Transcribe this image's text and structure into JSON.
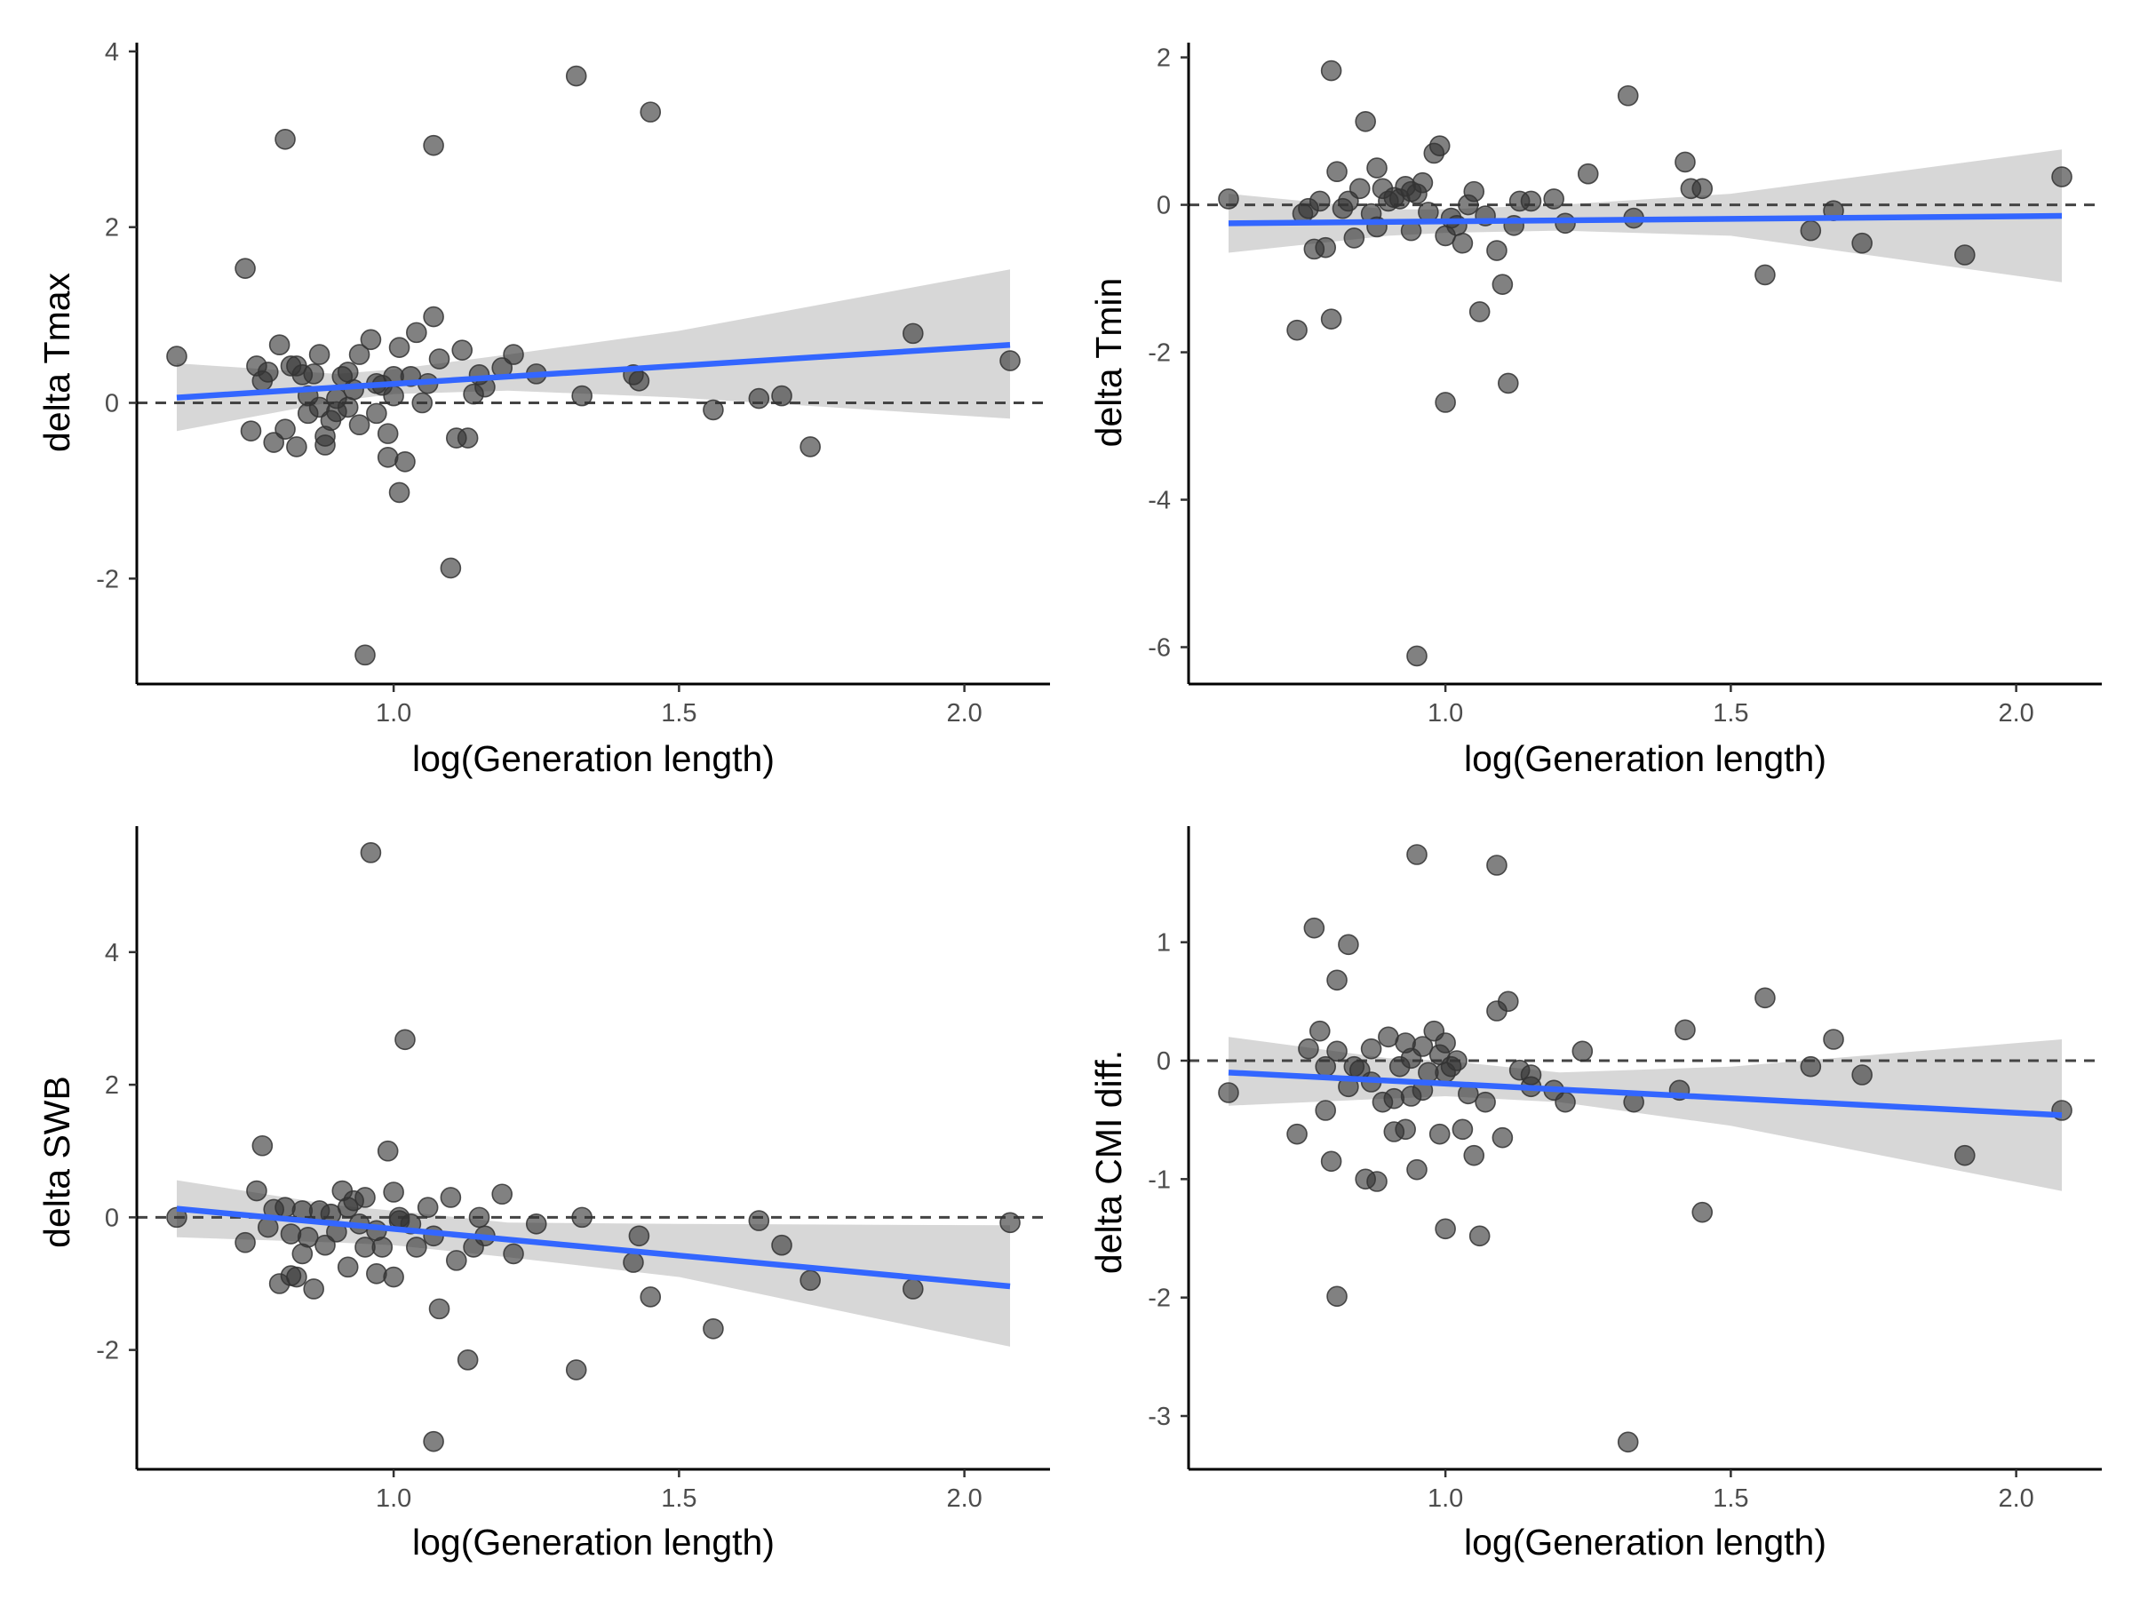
{
  "style": {
    "point_color": "#333333",
    "fit_color": "#3366FF",
    "ribbon_color": "#D3D3D3",
    "zero_line_color": "#444444",
    "axis_color": "#000000"
  },
  "chart_data": [
    {
      "type": "scatter",
      "title": "",
      "xlabel": "log(Generation length)",
      "ylabel": "delta Tmax",
      "xlim": [
        0.55,
        2.15
      ],
      "ylim": [
        -3.2,
        4.1
      ],
      "xticks": [
        1.0,
        1.5,
        2.0
      ],
      "xtick_labels": [
        "1.0",
        "1.5",
        "2.0"
      ],
      "yticks": [
        -2,
        0,
        2,
        4
      ],
      "ytick_labels": [
        "-2",
        "0",
        "2",
        "4"
      ],
      "reference_line": 0,
      "fit": {
        "x": [
          0.62,
          2.08
        ],
        "y": [
          0.06,
          0.66
        ]
      },
      "ribbon": {
        "x": [
          0.62,
          0.9,
          1.0,
          1.2,
          1.5,
          2.08
        ],
        "lower": [
          -0.32,
          0.02,
          0.1,
          0.14,
          0.06,
          -0.18
        ],
        "upper": [
          0.45,
          0.33,
          0.38,
          0.55,
          0.82,
          1.52
        ]
      },
      "points": [
        [
          0.62,
          0.53
        ],
        [
          0.74,
          1.53
        ],
        [
          0.75,
          -0.32
        ],
        [
          0.76,
          0.42
        ],
        [
          0.77,
          0.25
        ],
        [
          0.78,
          0.35
        ],
        [
          0.79,
          -0.45
        ],
        [
          0.8,
          0.66
        ],
        [
          0.81,
          3.0
        ],
        [
          0.81,
          -0.3
        ],
        [
          0.82,
          0.42
        ],
        [
          0.83,
          0.42
        ],
        [
          0.83,
          -0.5
        ],
        [
          0.84,
          0.32
        ],
        [
          0.85,
          0.08
        ],
        [
          0.85,
          -0.12
        ],
        [
          0.86,
          0.33
        ],
        [
          0.87,
          0.55
        ],
        [
          0.87,
          -0.05
        ],
        [
          0.88,
          -0.38
        ],
        [
          0.88,
          -0.48
        ],
        [
          0.89,
          -0.2
        ],
        [
          0.9,
          0.05
        ],
        [
          0.9,
          -0.1
        ],
        [
          0.91,
          0.3
        ],
        [
          0.92,
          0.35
        ],
        [
          0.92,
          -0.05
        ],
        [
          0.93,
          0.15
        ],
        [
          0.94,
          -0.25
        ],
        [
          0.94,
          0.55
        ],
        [
          0.95,
          -2.87
        ],
        [
          0.96,
          0.72
        ],
        [
          0.97,
          0.22
        ],
        [
          0.97,
          -0.12
        ],
        [
          0.98,
          0.2
        ],
        [
          0.99,
          -0.35
        ],
        [
          0.99,
          -0.62
        ],
        [
          1.0,
          0.08
        ],
        [
          1.0,
          0.3
        ],
        [
          1.01,
          0.63
        ],
        [
          1.01,
          -1.02
        ],
        [
          1.02,
          -0.67
        ],
        [
          1.03,
          0.3
        ],
        [
          1.04,
          0.8
        ],
        [
          1.05,
          0.0
        ],
        [
          1.06,
          0.22
        ],
        [
          1.07,
          2.93
        ],
        [
          1.07,
          0.98
        ],
        [
          1.08,
          0.5
        ],
        [
          1.1,
          -1.88
        ],
        [
          1.11,
          -0.4
        ],
        [
          1.12,
          0.6
        ],
        [
          1.13,
          -0.4
        ],
        [
          1.14,
          0.1
        ],
        [
          1.15,
          0.32
        ],
        [
          1.16,
          0.18
        ],
        [
          1.19,
          0.4
        ],
        [
          1.21,
          0.55
        ],
        [
          1.25,
          0.33
        ],
        [
          1.32,
          3.72
        ],
        [
          1.33,
          0.08
        ],
        [
          1.42,
          0.32
        ],
        [
          1.43,
          0.25
        ],
        [
          1.45,
          3.31
        ],
        [
          1.56,
          -0.08
        ],
        [
          1.64,
          0.05
        ],
        [
          1.68,
          0.08
        ],
        [
          1.73,
          -0.5
        ],
        [
          1.91,
          0.79
        ],
        [
          2.08,
          0.48
        ]
      ]
    },
    {
      "type": "scatter",
      "title": "",
      "xlabel": "log(Generation length)",
      "ylabel": "delta Tmin",
      "xlim": [
        0.55,
        2.15
      ],
      "ylim": [
        -6.5,
        2.2
      ],
      "xticks": [
        1.0,
        1.5,
        2.0
      ],
      "xtick_labels": [
        "1.0",
        "1.5",
        "2.0"
      ],
      "yticks": [
        -6,
        -4,
        -2,
        0,
        2
      ],
      "ytick_labels": [
        "-6",
        "-4",
        "-2",
        "0",
        "2"
      ],
      "reference_line": 0,
      "fit": {
        "x": [
          0.62,
          2.08
        ],
        "y": [
          -0.25,
          -0.15
        ]
      },
      "ribbon": {
        "x": [
          0.62,
          0.9,
          1.0,
          1.2,
          1.5,
          2.08
        ],
        "lower": [
          -0.65,
          -0.42,
          -0.38,
          -0.35,
          -0.42,
          -1.05
        ],
        "upper": [
          0.15,
          -0.06,
          -0.06,
          0.0,
          0.15,
          0.75
        ]
      },
      "points": [
        [
          0.62,
          0.08
        ],
        [
          0.74,
          -1.7
        ],
        [
          0.75,
          -0.12
        ],
        [
          0.76,
          -0.05
        ],
        [
          0.77,
          -0.6
        ],
        [
          0.78,
          0.05
        ],
        [
          0.79,
          -0.58
        ],
        [
          0.8,
          -1.55
        ],
        [
          0.8,
          1.82
        ],
        [
          0.81,
          0.45
        ],
        [
          0.82,
          -0.05
        ],
        [
          0.83,
          0.05
        ],
        [
          0.84,
          -0.45
        ],
        [
          0.85,
          0.22
        ],
        [
          0.86,
          1.13
        ],
        [
          0.87,
          -0.12
        ],
        [
          0.88,
          0.5
        ],
        [
          0.88,
          -0.3
        ],
        [
          0.89,
          0.22
        ],
        [
          0.9,
          0.05
        ],
        [
          0.91,
          0.1
        ],
        [
          0.92,
          0.08
        ],
        [
          0.93,
          0.25
        ],
        [
          0.94,
          0.18
        ],
        [
          0.94,
          -0.35
        ],
        [
          0.95,
          -6.12
        ],
        [
          0.95,
          0.15
        ],
        [
          0.96,
          0.3
        ],
        [
          0.97,
          -0.1
        ],
        [
          0.98,
          0.7
        ],
        [
          0.99,
          0.8
        ],
        [
          1.0,
          -0.42
        ],
        [
          1.0,
          -2.68
        ],
        [
          1.01,
          -0.18
        ],
        [
          1.02,
          -0.28
        ],
        [
          1.03,
          -0.52
        ],
        [
          1.04,
          0.0
        ],
        [
          1.05,
          0.18
        ],
        [
          1.06,
          -1.45
        ],
        [
          1.07,
          -0.15
        ],
        [
          1.09,
          -0.62
        ],
        [
          1.1,
          -1.08
        ],
        [
          1.11,
          -2.42
        ],
        [
          1.12,
          -0.28
        ],
        [
          1.13,
          0.05
        ],
        [
          1.15,
          0.05
        ],
        [
          1.19,
          0.08
        ],
        [
          1.21,
          -0.25
        ],
        [
          1.25,
          0.42
        ],
        [
          1.32,
          1.48
        ],
        [
          1.33,
          -0.18
        ],
        [
          1.42,
          0.58
        ],
        [
          1.43,
          0.22
        ],
        [
          1.45,
          0.22
        ],
        [
          1.56,
          -0.95
        ],
        [
          1.64,
          -0.35
        ],
        [
          1.68,
          -0.08
        ],
        [
          1.73,
          -0.52
        ],
        [
          1.91,
          -0.68
        ],
        [
          2.08,
          0.38
        ]
      ]
    },
    {
      "type": "scatter",
      "title": "",
      "xlabel": "log(Generation length)",
      "ylabel": "delta SWB",
      "xlim": [
        0.55,
        2.15
      ],
      "ylim": [
        -3.8,
        5.9
      ],
      "xticks": [
        1.0,
        1.5,
        2.0
      ],
      "xtick_labels": [
        "1.0",
        "1.5",
        "2.0"
      ],
      "yticks": [
        -2,
        0,
        2,
        4
      ],
      "ytick_labels": [
        "-2",
        "0",
        "2",
        "4"
      ],
      "reference_line": 0,
      "fit": {
        "x": [
          0.62,
          2.08
        ],
        "y": [
          0.13,
          -1.04
        ]
      },
      "ribbon": {
        "x": [
          0.62,
          0.9,
          1.0,
          1.2,
          1.5,
          2.08
        ],
        "lower": [
          -0.3,
          -0.38,
          -0.42,
          -0.6,
          -0.9,
          -1.95
        ],
        "upper": [
          0.56,
          0.18,
          0.1,
          -0.08,
          -0.1,
          -0.12
        ]
      },
      "points": [
        [
          0.62,
          0.0
        ],
        [
          0.74,
          -0.38
        ],
        [
          0.76,
          0.4
        ],
        [
          0.77,
          1.08
        ],
        [
          0.78,
          -0.15
        ],
        [
          0.79,
          0.12
        ],
        [
          0.8,
          -1.0
        ],
        [
          0.81,
          0.15
        ],
        [
          0.82,
          -0.88
        ],
        [
          0.82,
          -0.25
        ],
        [
          0.83,
          -0.9
        ],
        [
          0.84,
          0.1
        ],
        [
          0.84,
          -0.55
        ],
        [
          0.85,
          -0.3
        ],
        [
          0.86,
          -1.08
        ],
        [
          0.87,
          0.1
        ],
        [
          0.88,
          -0.42
        ],
        [
          0.89,
          0.05
        ],
        [
          0.9,
          -0.22
        ],
        [
          0.91,
          0.4
        ],
        [
          0.92,
          -0.75
        ],
        [
          0.92,
          0.15
        ],
        [
          0.93,
          0.25
        ],
        [
          0.94,
          -0.1
        ],
        [
          0.95,
          0.3
        ],
        [
          0.95,
          -0.45
        ],
        [
          0.96,
          5.5
        ],
        [
          0.97,
          -0.85
        ],
        [
          0.97,
          -0.2
        ],
        [
          0.98,
          -0.45
        ],
        [
          0.99,
          1.0
        ],
        [
          1.0,
          -0.9
        ],
        [
          1.0,
          0.38
        ],
        [
          1.01,
          0.0
        ],
        [
          1.01,
          -0.05
        ],
        [
          1.02,
          2.68
        ],
        [
          1.03,
          -0.1
        ],
        [
          1.04,
          -0.45
        ],
        [
          1.06,
          0.15
        ],
        [
          1.07,
          -3.38
        ],
        [
          1.07,
          -0.28
        ],
        [
          1.08,
          -1.38
        ],
        [
          1.1,
          0.3
        ],
        [
          1.11,
          -0.65
        ],
        [
          1.13,
          -2.15
        ],
        [
          1.14,
          -0.45
        ],
        [
          1.15,
          0.0
        ],
        [
          1.16,
          -0.28
        ],
        [
          1.19,
          0.35
        ],
        [
          1.21,
          -0.55
        ],
        [
          1.25,
          -0.1
        ],
        [
          1.32,
          -2.3
        ],
        [
          1.33,
          0.0
        ],
        [
          1.42,
          -0.68
        ],
        [
          1.43,
          -0.28
        ],
        [
          1.45,
          -1.2
        ],
        [
          1.56,
          -1.68
        ],
        [
          1.64,
          -0.05
        ],
        [
          1.73,
          -0.95
        ],
        [
          1.68,
          -0.42
        ],
        [
          1.91,
          -1.08
        ],
        [
          2.08,
          -0.08
        ]
      ]
    },
    {
      "type": "scatter",
      "title": "",
      "xlabel": "log(Generation length)",
      "ylabel": "delta CMI diff.",
      "xlim": [
        0.55,
        2.15
      ],
      "ylim": [
        -3.45,
        1.98
      ],
      "xticks": [
        1.0,
        1.5,
        2.0
      ],
      "xtick_labels": [
        "1.0",
        "1.5",
        "2.0"
      ],
      "yticks": [
        -3,
        -2,
        -1,
        0,
        1
      ],
      "ytick_labels": [
        "-3",
        "-2",
        "-1",
        "0",
        "1"
      ],
      "reference_line": 0,
      "fit": {
        "x": [
          0.62,
          2.08
        ],
        "y": [
          -0.1,
          -0.46
        ]
      },
      "ribbon": {
        "x": [
          0.62,
          0.9,
          1.0,
          1.2,
          1.5,
          2.08
        ],
        "lower": [
          -0.38,
          -0.32,
          -0.3,
          -0.35,
          -0.55,
          -1.1
        ],
        "upper": [
          0.2,
          0.02,
          0.0,
          -0.1,
          -0.05,
          0.18
        ]
      },
      "points": [
        [
          0.62,
          -0.27
        ],
        [
          0.74,
          -0.62
        ],
        [
          0.76,
          0.1
        ],
        [
          0.77,
          1.12
        ],
        [
          0.78,
          0.25
        ],
        [
          0.79,
          -0.05
        ],
        [
          0.79,
          -0.42
        ],
        [
          0.8,
          -0.85
        ],
        [
          0.81,
          0.08
        ],
        [
          0.81,
          0.68
        ],
        [
          0.81,
          -1.99
        ],
        [
          0.83,
          0.98
        ],
        [
          0.83,
          -0.22
        ],
        [
          0.84,
          -0.05
        ],
        [
          0.85,
          -0.08
        ],
        [
          0.86,
          -1.0
        ],
        [
          0.87,
          0.1
        ],
        [
          0.87,
          -0.18
        ],
        [
          0.88,
          -1.02
        ],
        [
          0.89,
          -0.35
        ],
        [
          0.9,
          0.2
        ],
        [
          0.91,
          -0.32
        ],
        [
          0.91,
          -0.6
        ],
        [
          0.92,
          -0.05
        ],
        [
          0.93,
          0.15
        ],
        [
          0.93,
          -0.58
        ],
        [
          0.94,
          -0.3
        ],
        [
          0.94,
          0.02
        ],
        [
          0.95,
          1.74
        ],
        [
          0.95,
          -0.92
        ],
        [
          0.96,
          -0.25
        ],
        [
          0.96,
          0.12
        ],
        [
          0.97,
          -0.1
        ],
        [
          0.98,
          0.25
        ],
        [
          0.99,
          0.05
        ],
        [
          0.99,
          -0.62
        ],
        [
          1.0,
          -0.1
        ],
        [
          1.0,
          0.15
        ],
        [
          1.0,
          -1.42
        ],
        [
          1.01,
          -0.05
        ],
        [
          1.02,
          0.0
        ],
        [
          1.03,
          -0.58
        ],
        [
          1.04,
          -0.28
        ],
        [
          1.05,
          -0.8
        ],
        [
          1.06,
          -1.48
        ],
        [
          1.07,
          -0.35
        ],
        [
          1.09,
          0.42
        ],
        [
          1.09,
          1.65
        ],
        [
          1.1,
          -0.65
        ],
        [
          1.11,
          0.5
        ],
        [
          1.13,
          -0.08
        ],
        [
          1.15,
          -0.12
        ],
        [
          1.15,
          -0.22
        ],
        [
          1.19,
          -0.25
        ],
        [
          1.21,
          -0.35
        ],
        [
          1.24,
          0.08
        ],
        [
          1.32,
          -3.22
        ],
        [
          1.33,
          -0.35
        ],
        [
          1.41,
          -0.25
        ],
        [
          1.42,
          0.26
        ],
        [
          1.45,
          -1.28
        ],
        [
          1.56,
          0.53
        ],
        [
          1.64,
          -0.05
        ],
        [
          1.68,
          0.18
        ],
        [
          1.73,
          -0.12
        ],
        [
          1.91,
          -0.8
        ],
        [
          2.08,
          -0.42
        ]
      ]
    }
  ]
}
